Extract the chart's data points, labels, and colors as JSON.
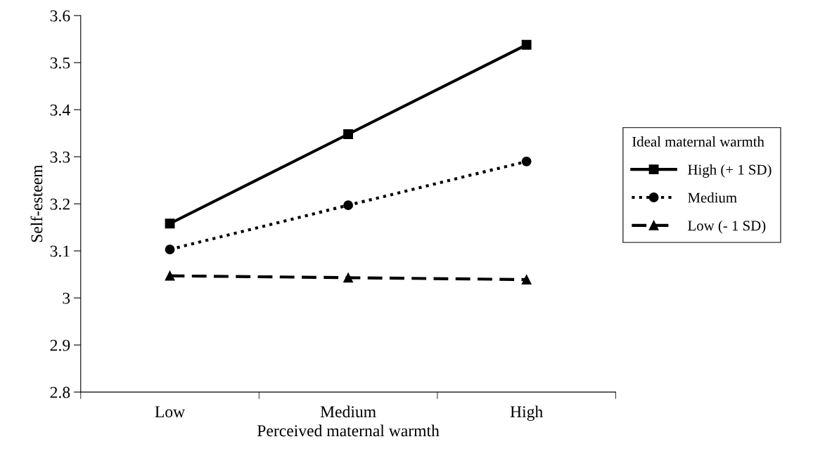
{
  "chart_data": {
    "type": "line",
    "xlabel": "Perceived maternal warmth",
    "ylabel": "Self-esteem",
    "categories": [
      "Low",
      "Medium",
      "High"
    ],
    "series": [
      {
        "name": "High (+ 1 SD)",
        "color": "#000000",
        "marker": "square",
        "line_style": "solid",
        "values": [
          3.158,
          3.348,
          3.538
        ]
      },
      {
        "name": "Medium",
        "color": "#000000",
        "marker": "circle",
        "line_style": "dotted",
        "values": [
          3.103,
          3.197,
          3.29
        ]
      },
      {
        "name": "Low (- 1 SD)",
        "color": "#000000",
        "marker": "triangle",
        "line_style": "dashed",
        "values": [
          3.047,
          3.043,
          3.039
        ]
      }
    ],
    "legend": "right",
    "legend_title": "Ideal maternal warmth",
    "ylim": [
      2.8,
      3.6
    ],
    "yticks": [
      2.8,
      2.9,
      3,
      3.1,
      3.2,
      3.3,
      3.4,
      3.5,
      3.6
    ]
  }
}
